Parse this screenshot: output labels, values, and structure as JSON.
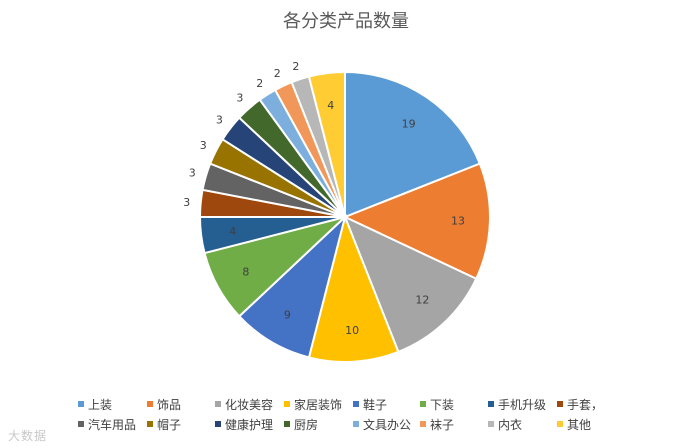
{
  "watermark": "大数据",
  "chart_data": {
    "type": "pie",
    "title": "各分类产品数量",
    "legend_position": "bottom",
    "categories": [
      "上装",
      "饰品",
      "化妆美容",
      "家居装饰",
      "鞋子",
      "下装",
      "手机升级",
      "手套，",
      "汽车用品",
      "帽子",
      "健康护理",
      "厨房",
      "文具办公",
      "袜子",
      "内衣",
      "其他"
    ],
    "values": [
      19,
      13,
      12,
      10,
      9,
      8,
      4,
      3,
      3,
      3,
      3,
      3,
      2,
      2,
      2,
      4
    ],
    "colors": [
      "#5b9bd5",
      "#ed7d31",
      "#a5a5a5",
      "#ffc000",
      "#4472c4",
      "#70ad47",
      "#255e91",
      "#9e480e",
      "#636363",
      "#997300",
      "#264478",
      "#43682b",
      "#7cafdd",
      "#f1975a",
      "#b7b7b7",
      "#ffcd33"
    ]
  }
}
